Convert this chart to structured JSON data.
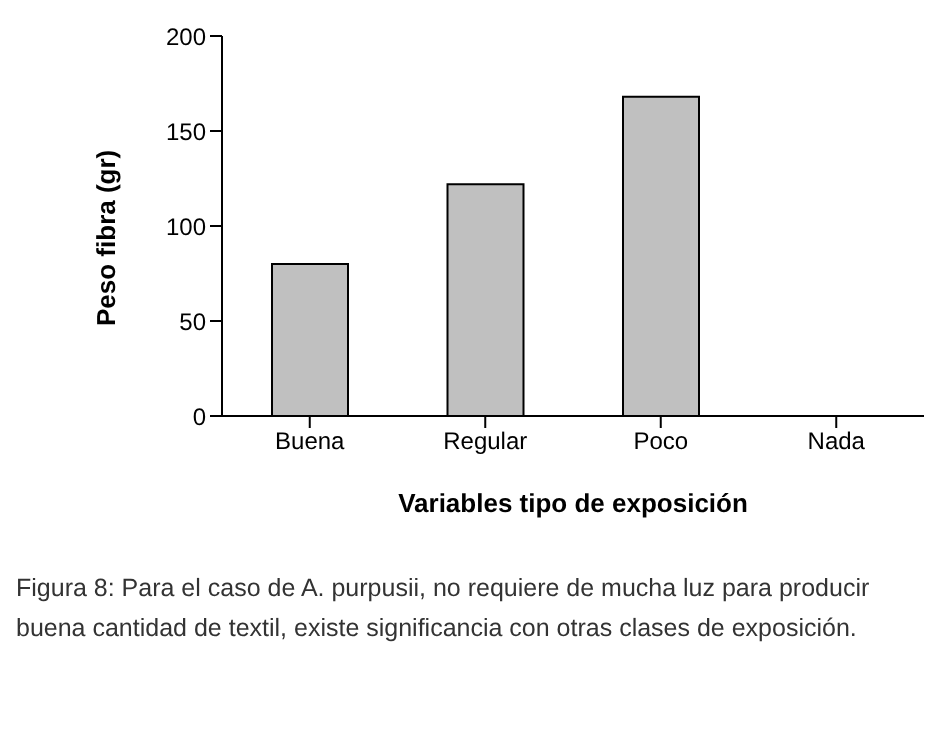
{
  "chart_data": {
    "type": "bar",
    "xlabel": "Variables tipo de exposición",
    "ylabel": "Peso fibra (gr)",
    "categories": [
      "Buena",
      "Regular",
      "Poco",
      "Nada"
    ],
    "values": [
      80,
      122,
      168,
      0
    ],
    "color": "#c0c0c0",
    "ylim": [
      0,
      200
    ],
    "yticks": [
      0,
      50,
      100,
      150,
      200
    ],
    "grid": false,
    "legend": false,
    "annotations": [
      "Figura 8: Para el caso de A. purpusii, no requiere de mucha luz para producir buena cantidad de textil, existe significancia con otras clases de exposición."
    ]
  }
}
